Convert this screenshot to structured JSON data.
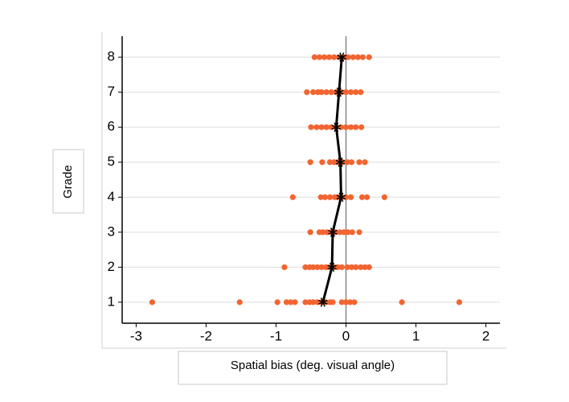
{
  "chart_data": {
    "type": "scatter",
    "xlabel": "Spatial bias (deg. visual angle)",
    "ylabel": "Grade",
    "xlim": [
      -3.2,
      2.2
    ],
    "ylim": [
      0.4,
      8.6
    ],
    "xticks": [
      -3,
      -2,
      -1,
      0,
      1,
      2
    ],
    "yticks": [
      1,
      2,
      3,
      4,
      5,
      6,
      7,
      8
    ],
    "grid": "y",
    "vline": 0,
    "series": [
      {
        "type": "scatter",
        "color": "#f26531",
        "x": [
          -2.77,
          -1.52,
          -0.98,
          -0.85,
          -0.79,
          -0.73,
          -0.58,
          -0.52,
          -0.47,
          -0.41,
          -0.35,
          -0.29,
          -0.23,
          -0.19,
          -0.06,
          0,
          0.06,
          0.12,
          0.8,
          1.62,
          -0.88,
          -0.58,
          -0.52,
          -0.47,
          -0.41,
          -0.35,
          -0.29,
          -0.23,
          -0.17,
          -0.12,
          -0.06,
          0.02,
          0.08,
          0.14,
          0.21,
          0.27,
          0.33,
          -0.51,
          -0.38,
          -0.33,
          -0.27,
          -0.21,
          -0.15,
          -0.09,
          -0.03,
          0.03,
          0.09,
          0.19,
          -0.76,
          -0.36,
          -0.3,
          -0.23,
          -0.16,
          -0.12,
          -0.06,
          0,
          0.07,
          0.23,
          0.3,
          0.55,
          -0.51,
          -0.34,
          -0.23,
          -0.17,
          -0.12,
          -0.05,
          0.02,
          0.08,
          0.19,
          0.27,
          -0.5,
          -0.42,
          -0.35,
          -0.28,
          -0.21,
          -0.14,
          -0.07,
          0,
          0.07,
          0.14,
          0.22,
          -0.56,
          -0.47,
          -0.4,
          -0.35,
          -0.28,
          -0.21,
          -0.14,
          -0.07,
          0,
          0.07,
          0.14,
          0.21,
          -0.45,
          -0.38,
          -0.31,
          -0.24,
          -0.17,
          -0.1,
          -0.03,
          0.03,
          0.1,
          0.17,
          0.24,
          0.33
        ],
        "values": [
          1,
          1,
          1,
          1,
          1,
          1,
          1,
          1,
          1,
          1,
          1,
          1,
          1,
          1,
          1,
          1,
          1,
          1,
          1,
          1,
          2,
          2,
          2,
          2,
          2,
          2,
          2,
          2,
          2,
          2,
          2,
          2,
          2,
          2,
          2,
          2,
          2,
          3,
          3,
          3,
          3,
          3,
          3,
          3,
          3,
          3,
          3,
          3,
          4,
          4,
          4,
          4,
          4,
          4,
          4,
          4,
          4,
          4,
          4,
          4,
          5,
          5,
          5,
          5,
          5,
          5,
          5,
          5,
          5,
          5,
          6,
          6,
          6,
          6,
          6,
          6,
          6,
          6,
          6,
          6,
          6,
          7,
          7,
          7,
          7,
          7,
          7,
          7,
          7,
          7,
          7,
          7,
          7,
          8,
          8,
          8,
          8,
          8,
          8,
          8,
          8,
          8,
          8,
          8,
          8
        ]
      },
      {
        "type": "line",
        "color": "#000000",
        "marker": "star",
        "x": [
          -0.33,
          -0.2,
          -0.19,
          -0.07,
          -0.08,
          -0.14,
          -0.1,
          -0.06
        ],
        "values": [
          1,
          2,
          3,
          4,
          5,
          6,
          7,
          8
        ]
      }
    ]
  }
}
